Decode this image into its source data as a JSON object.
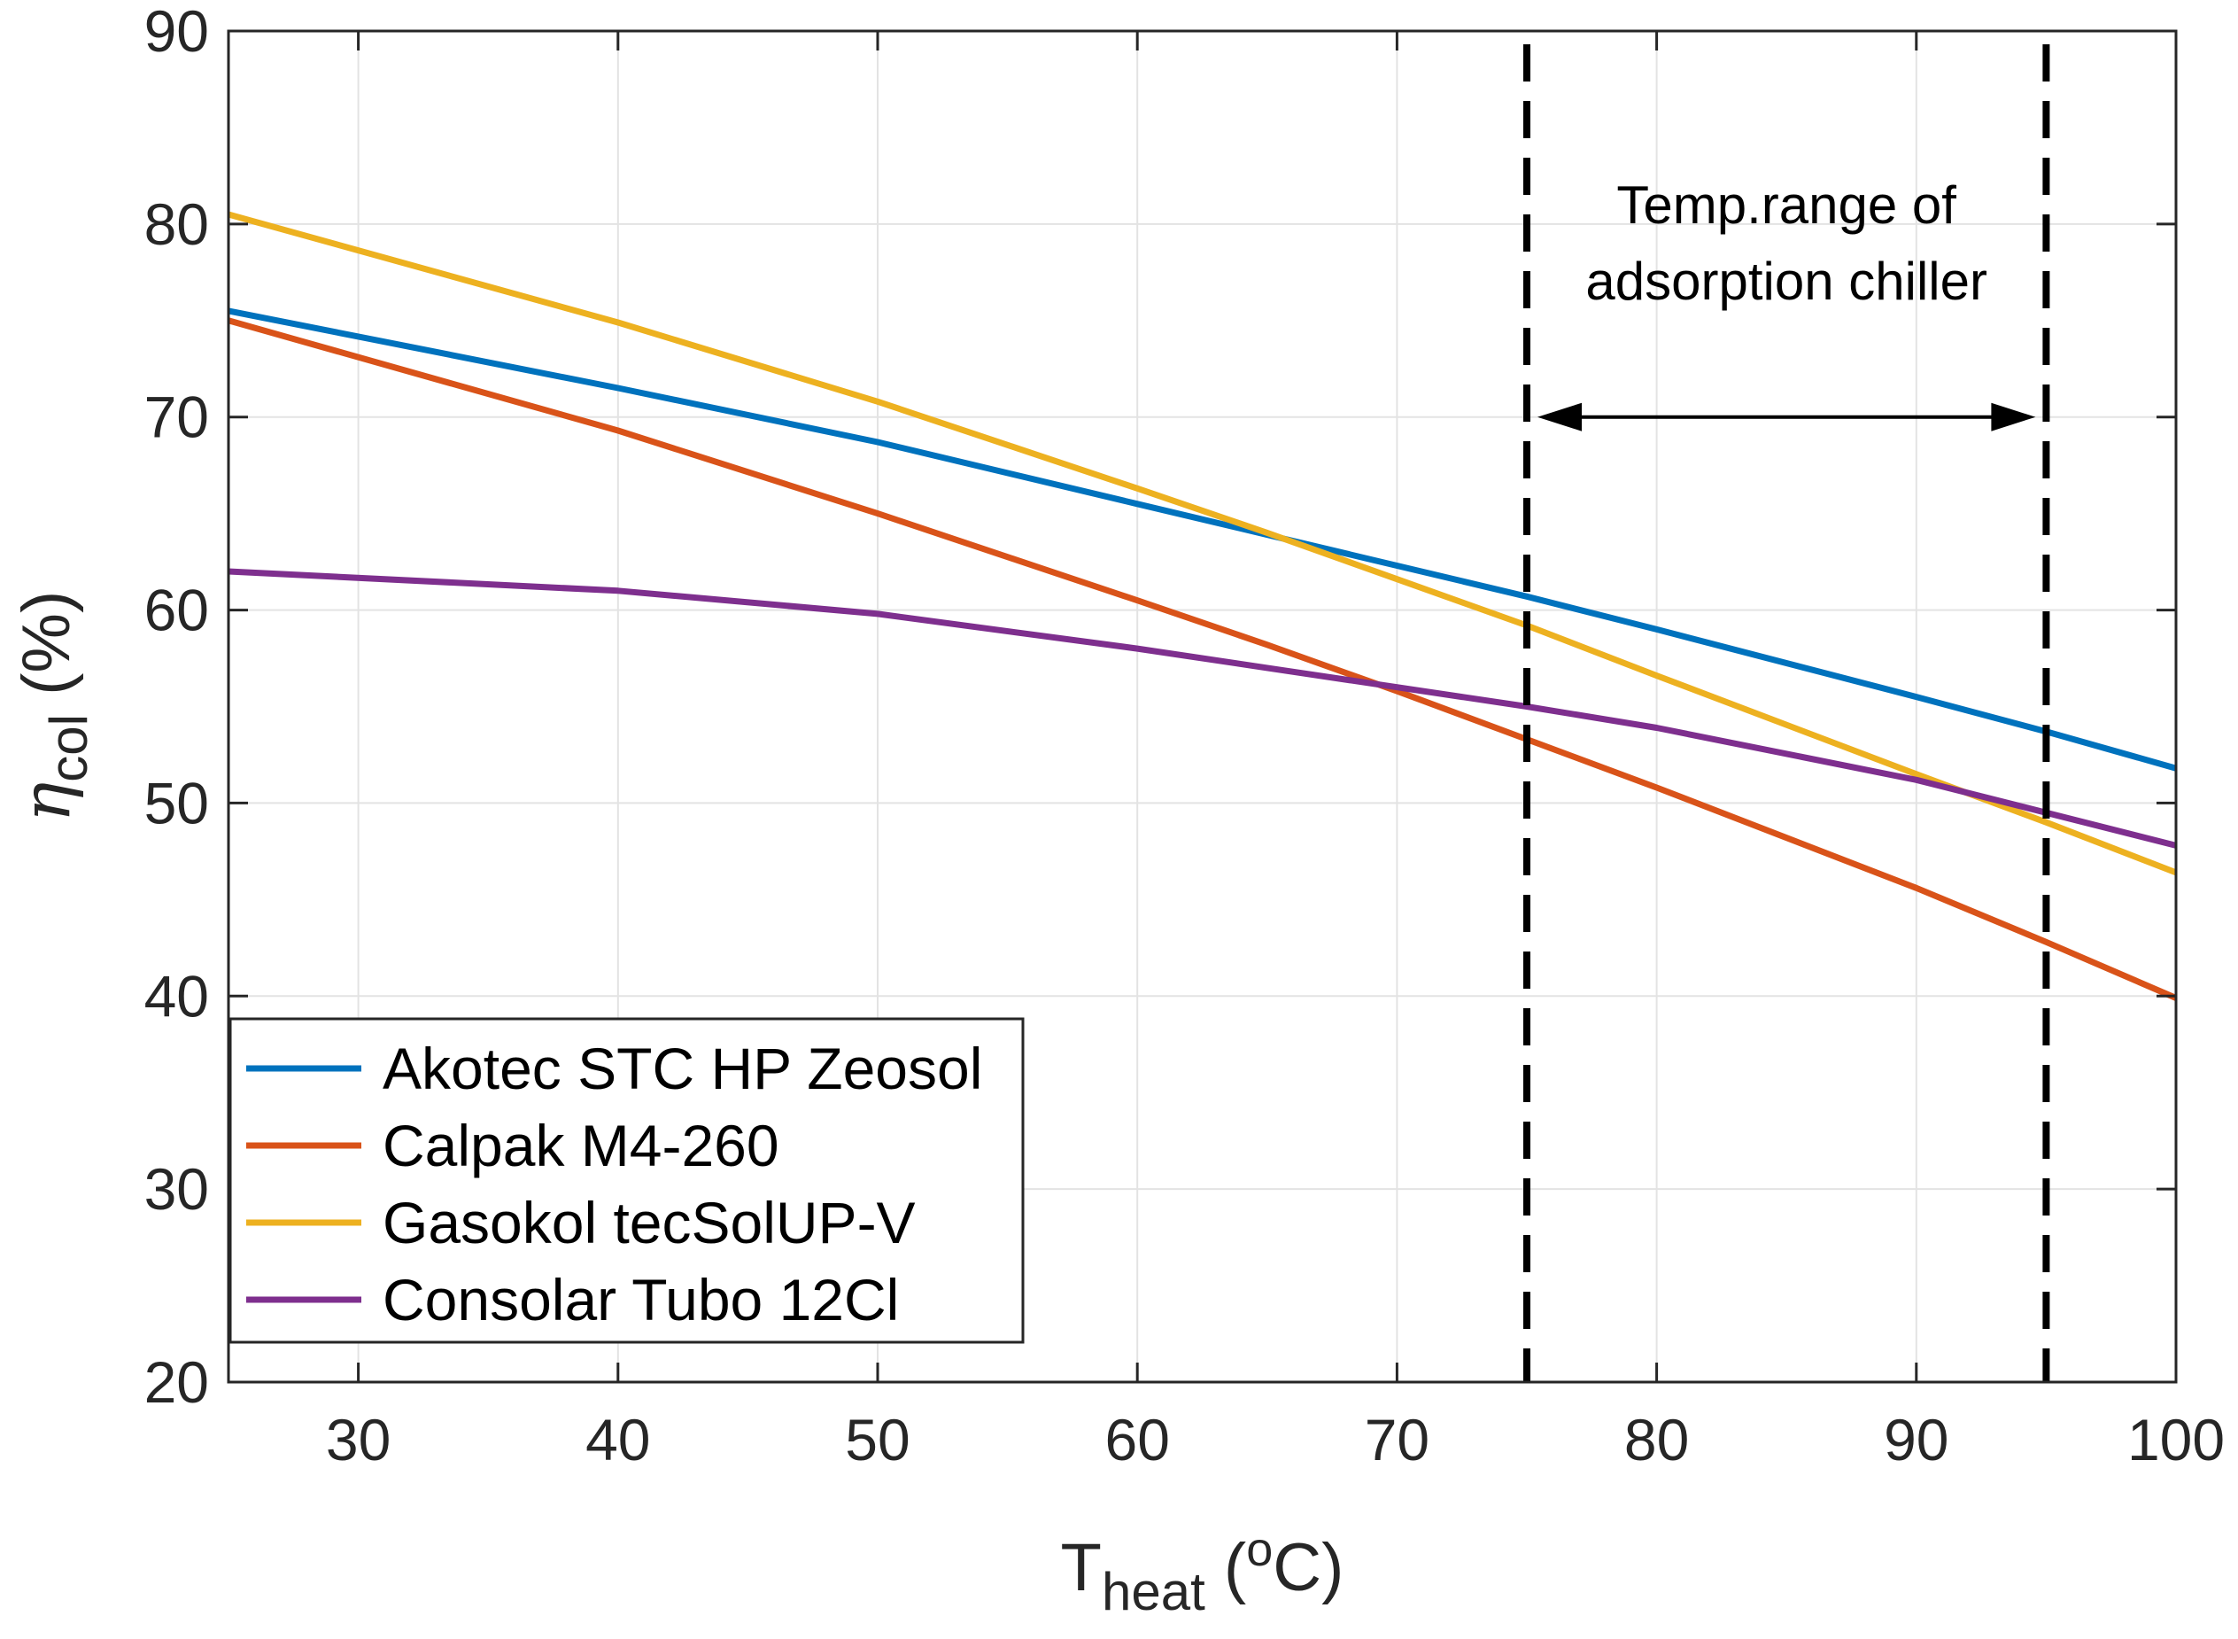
{
  "chart_data": {
    "type": "line",
    "xlabel": {
      "main": "T",
      "sub": "heat",
      "paren_open": " (",
      "sup": "o",
      "unit": "C)"
    },
    "ylabel": {
      "main": "η",
      "sub": "col",
      "unit": " (%)"
    },
    "xlim": [
      25,
      100
    ],
    "ylim": [
      20,
      90
    ],
    "xticks": [
      30,
      40,
      50,
      60,
      70,
      80,
      90,
      100
    ],
    "yticks": [
      20,
      30,
      40,
      50,
      60,
      70,
      80,
      90
    ],
    "grid": true,
    "legend_position": "bottom-left",
    "series": [
      {
        "name": "Akotec STC HP Zeosol",
        "color": "#0072BD",
        "x": [
          25,
          40,
          50,
          60,
          65,
          70,
          75,
          80,
          90,
          95,
          100
        ],
        "y": [
          75.5,
          71.5,
          68.7,
          65.5,
          63.9,
          62.3,
          60.7,
          59.0,
          55.5,
          53.7,
          51.8
        ]
      },
      {
        "name": "Calpak M4-260",
        "color": "#D95319",
        "x": [
          25,
          40,
          50,
          60,
          65,
          70,
          75,
          80,
          90,
          95,
          100
        ],
        "y": [
          75.0,
          69.3,
          65.0,
          60.5,
          58.2,
          55.8,
          53.3,
          50.8,
          45.6,
          42.8,
          39.9
        ]
      },
      {
        "name": "Gasokol tecSolUP-V",
        "color": "#EDB120",
        "x": [
          25,
          40,
          50,
          60,
          65,
          70,
          75,
          80,
          90,
          95,
          100
        ],
        "y": [
          80.5,
          74.9,
          70.8,
          66.3,
          64.0,
          61.6,
          59.2,
          56.6,
          51.5,
          49.0,
          46.4
        ]
      },
      {
        "name": "Consolar Tubo 12Cl",
        "color": "#7E2F8E",
        "x": [
          25,
          40,
          50,
          60,
          65,
          70,
          75,
          80,
          90,
          95,
          100
        ],
        "y": [
          62.0,
          61.0,
          59.8,
          58.0,
          57.0,
          56.0,
          55.0,
          53.9,
          51.2,
          49.5,
          47.8
        ]
      }
    ],
    "vlines": [
      {
        "x": 75,
        "style": "dashed"
      },
      {
        "x": 95,
        "style": "dashed"
      }
    ],
    "annotation": {
      "line1": "Temp.range of",
      "line2": "adsorption chiller",
      "arrow_from": 75,
      "arrow_to": 95,
      "arrow_y": 70
    }
  }
}
